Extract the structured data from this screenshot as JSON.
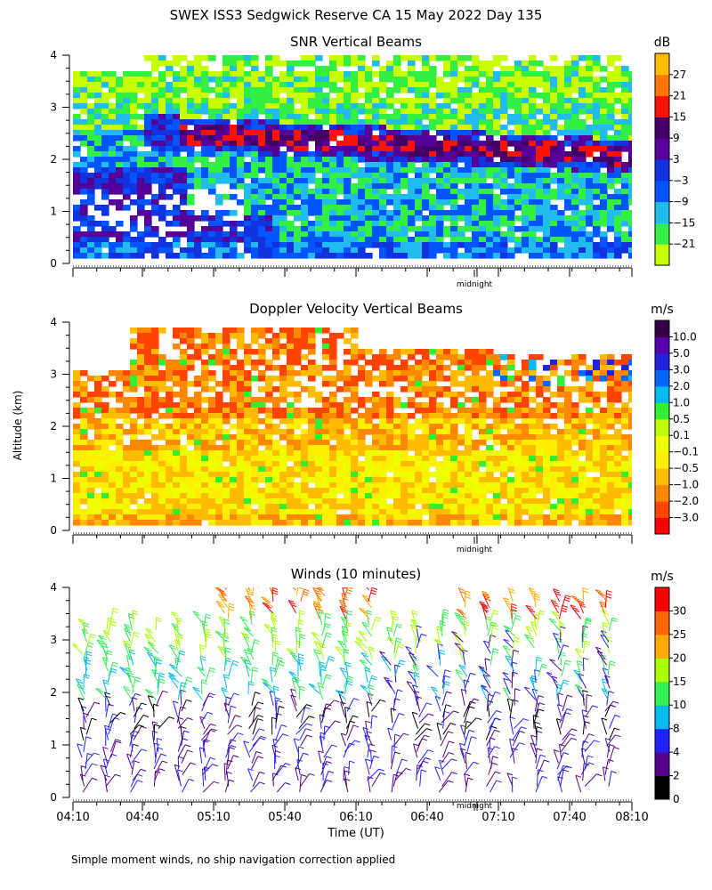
{
  "figure": {
    "title": "SWEX ISS3 Sedgwick Reserve CA  15 May 2022 Day 135",
    "y_axis_label": "Altitude (km)",
    "x_axis_label": "Time (UT)",
    "footnote": "Simple moment winds, no ship navigation correction applied",
    "midnight_label": "midnight"
  },
  "colors": {
    "snr_scale": [
      "#c8ff00",
      "#33ee44",
      "#22bbee",
      "#0055ff",
      "#1133dd",
      "#550099",
      "#440066",
      "#ff1100",
      "#ff7700",
      "#ffbb00"
    ],
    "doppler_scale": [
      "#ff0000",
      "#ff4400",
      "#ff8800",
      "#ffbb00",
      "#ffee00",
      "#eeff00",
      "#bbff00",
      "#33ee33",
      "#00bbee",
      "#0066ff",
      "#2222dd",
      "#5500aa",
      "#330044"
    ],
    "wind_scale": [
      "#000000",
      "#550088",
      "#2222ff",
      "#00bbee",
      "#33ee55",
      "#aaff00",
      "#ffaa00",
      "#ff6600",
      "#ff0000"
    ]
  },
  "chart_data": [
    {
      "type": "heatmap",
      "title": "SNR Vertical Beams",
      "ylim": [
        0,
        4
      ],
      "y_ticks": [
        "0",
        "1",
        "2",
        "3",
        "4"
      ],
      "colorbar": {
        "unit": "dB",
        "labels": [
          "27",
          "21",
          "15",
          "9",
          "3",
          "−3",
          "−9",
          "−15",
          "−21"
        ]
      }
    },
    {
      "type": "heatmap",
      "title": "Doppler Velocity Vertical Beams",
      "ylim": [
        0,
        4
      ],
      "y_ticks": [
        "0",
        "1",
        "2",
        "3",
        "4"
      ],
      "colorbar": {
        "unit": "m/s",
        "labels": [
          "10.0",
          "5.0",
          "3.0",
          "2.0",
          "1.0",
          "0.5",
          "0.1",
          "−0.1",
          "−0.5",
          "−1.0",
          "−2.0",
          "−3.0"
        ]
      }
    },
    {
      "type": "scatter",
      "title": "Winds (10 minutes)",
      "ylim": [
        0,
        4
      ],
      "y_ticks": [
        "0",
        "1",
        "2",
        "3",
        "4"
      ],
      "x_ticks": [
        "04:10",
        "04:40",
        "05:10",
        "05:40",
        "06:10",
        "06:40",
        "07:10",
        "07:40",
        "08:10"
      ],
      "colorbar": {
        "unit": "m/s",
        "labels": [
          "30",
          "25",
          "20",
          "15",
          "10",
          "8",
          "4",
          "2",
          "0"
        ]
      }
    }
  ]
}
